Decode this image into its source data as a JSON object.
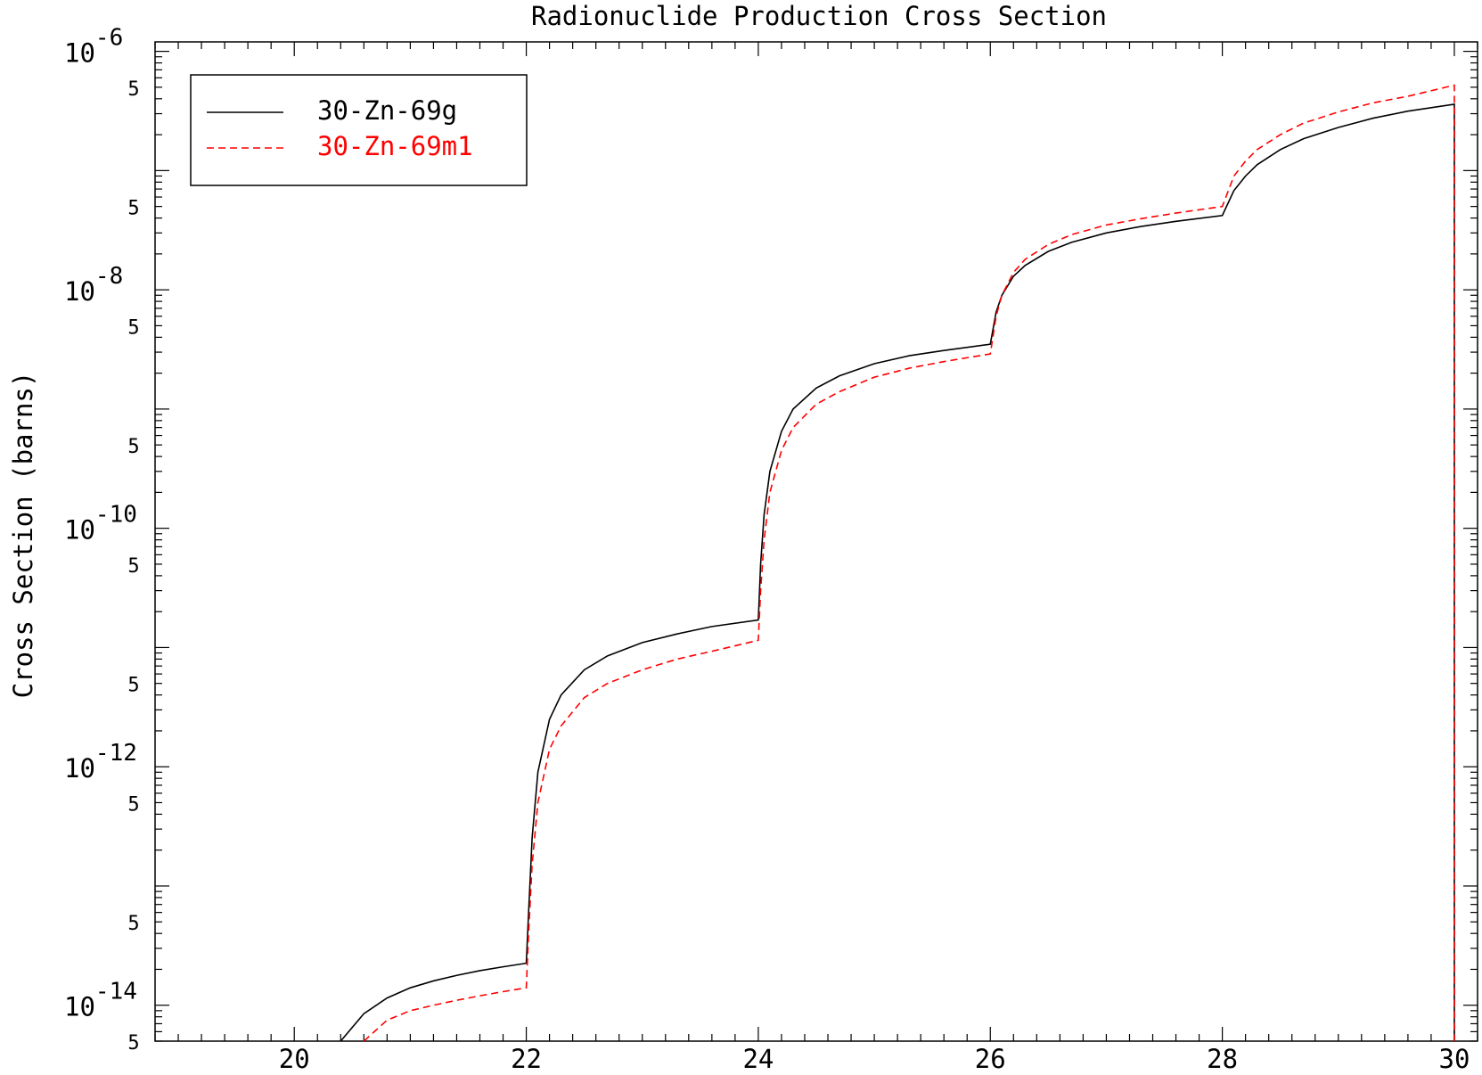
{
  "chart_data": {
    "type": "line",
    "title": "Radionuclide Production Cross Section",
    "xlabel": "",
    "ylabel": "Cross Section (barns)",
    "xlim": [
      18.8,
      30.2
    ],
    "ylim": [
      5e-15,
      1.2e-06
    ],
    "yscale": "log",
    "grid": false,
    "legend_position": "top-left",
    "x_ticks": [
      20,
      22,
      24,
      26,
      28,
      30
    ],
    "x_tick_labels": [
      "20",
      "22",
      "24",
      "26",
      "28",
      "30"
    ],
    "y_major_ticks": [
      {
        "value": 1e-06,
        "base": "10",
        "exp": "-6"
      },
      {
        "value": 1e-08,
        "base": "10",
        "exp": "-8"
      },
      {
        "value": 1e-10,
        "base": "10",
        "exp": "-10"
      },
      {
        "value": 1e-12,
        "base": "10",
        "exp": "-12"
      },
      {
        "value": 1e-14,
        "base": "10",
        "exp": "-14"
      }
    ],
    "y_minor_label": "5",
    "series": [
      {
        "name": "30-Zn-69g",
        "color": "#000000",
        "dash": "solid",
        "x": [
          20.4,
          20.6,
          20.8,
          21.0,
          21.2,
          21.4,
          21.6,
          21.8,
          22.0,
          22.0,
          22.02,
          22.05,
          22.1,
          22.2,
          22.3,
          22.5,
          22.7,
          23.0,
          23.3,
          23.6,
          24.0,
          24.0,
          24.02,
          24.05,
          24.1,
          24.2,
          24.3,
          24.5,
          24.7,
          25.0,
          25.3,
          25.6,
          26.0,
          26.0,
          26.05,
          26.1,
          26.2,
          26.3,
          26.5,
          26.7,
          27.0,
          27.3,
          27.6,
          28.0,
          28.0,
          28.1,
          28.2,
          28.3,
          28.5,
          28.7,
          29.0,
          29.3,
          29.6,
          30.0,
          30.0
        ],
        "y": [
          5e-15,
          8.5e-15,
          1.15e-14,
          1.4e-14,
          1.6e-14,
          1.78e-14,
          1.95e-14,
          2.1e-14,
          2.25e-14,
          2.25e-14,
          6e-14,
          2.5e-13,
          9e-13,
          2.5e-12,
          4e-12,
          6.5e-12,
          8.5e-12,
          1.1e-11,
          1.3e-11,
          1.5e-11,
          1.7e-11,
          1.7e-11,
          5e-11,
          1.3e-10,
          3e-10,
          6.5e-10,
          1e-09,
          1.5e-09,
          1.9e-09,
          2.4e-09,
          2.8e-09,
          3.1e-09,
          3.5e-09,
          3.5e-09,
          6.5e-09,
          9e-09,
          1.3e-08,
          1.6e-08,
          2.1e-08,
          2.5e-08,
          3e-08,
          3.4e-08,
          3.75e-08,
          4.2e-08,
          4.2e-08,
          6.8e-08,
          9e-08,
          1.12e-07,
          1.5e-07,
          1.85e-07,
          2.3e-07,
          2.75e-07,
          3.15e-07,
          3.6e-07,
          5e-15
        ]
      },
      {
        "name": "30-Zn-69m1",
        "color": "#ff0000",
        "dash": "dashed",
        "x": [
          20.6,
          20.8,
          21.0,
          21.2,
          21.4,
          21.6,
          21.8,
          22.0,
          22.0,
          22.02,
          22.05,
          22.1,
          22.2,
          22.3,
          22.5,
          22.7,
          23.0,
          23.3,
          23.6,
          24.0,
          24.0,
          24.02,
          24.05,
          24.1,
          24.2,
          24.3,
          24.5,
          24.7,
          25.0,
          25.3,
          25.6,
          26.0,
          26.0,
          26.05,
          26.1,
          26.2,
          26.3,
          26.5,
          26.7,
          27.0,
          27.3,
          27.6,
          28.0,
          28.0,
          28.1,
          28.2,
          28.3,
          28.5,
          28.7,
          29.0,
          29.3,
          29.6,
          30.0,
          30.0
        ],
        "y": [
          5e-15,
          7.5e-15,
          9e-15,
          1e-14,
          1.1e-14,
          1.2e-14,
          1.3e-14,
          1.4e-14,
          1.4e-14,
          4e-14,
          1.5e-13,
          5e-13,
          1.4e-12,
          2.2e-12,
          3.8e-12,
          5e-12,
          6.5e-12,
          8e-12,
          9.3e-12,
          1.15e-11,
          1.15e-11,
          3e-11,
          8e-11,
          2e-10,
          4.5e-10,
          7e-10,
          1.1e-09,
          1.4e-09,
          1.85e-09,
          2.2e-09,
          2.5e-09,
          2.9e-09,
          2.9e-09,
          6e-09,
          9e-09,
          1.4e-08,
          1.8e-08,
          2.4e-08,
          2.9e-08,
          3.5e-08,
          3.95e-08,
          4.4e-08,
          5e-08,
          5e-08,
          9e-08,
          1.2e-07,
          1.5e-07,
          2e-07,
          2.5e-07,
          3.1e-07,
          3.7e-07,
          4.2e-07,
          5.2e-07,
          5e-15
        ]
      }
    ]
  }
}
